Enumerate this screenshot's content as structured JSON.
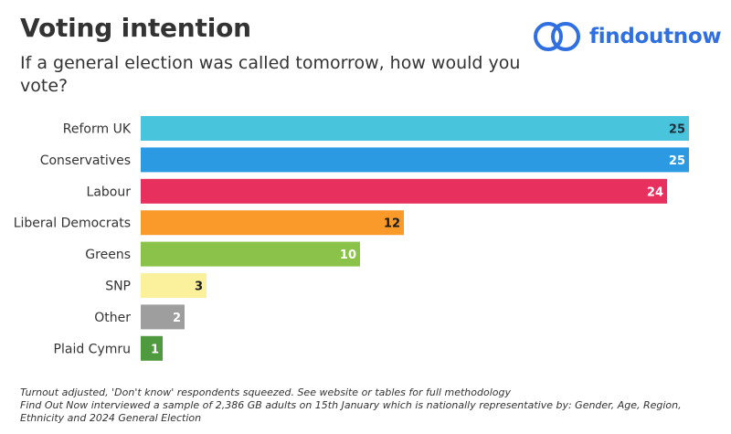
{
  "header": {
    "title": "Voting intention",
    "subtitle": "If a general election was called tomorrow, how would you vote?"
  },
  "logo": {
    "text": "findoutnow",
    "icon": "two-circles-logo-icon",
    "color": "#2f6fe0"
  },
  "footnotes": {
    "line1": "Turnout adjusted, 'Don't know' respondents squeezed. See website or tables for full methodology",
    "line2": "Find Out Now interviewed a sample of 2,386 GB adults on 15th January which is nationally representative by: Gender, Age, Region, Ethnicity and 2024 General Election"
  },
  "chart_data": {
    "type": "bar",
    "orientation": "horizontal",
    "categories": [
      "Reform UK",
      "Conservatives",
      "Labour",
      "Liberal Democrats",
      "Greens",
      "SNP",
      "Other",
      "Plaid Cymru"
    ],
    "values": [
      25,
      25,
      24,
      12,
      10,
      3,
      2,
      1
    ],
    "colors": [
      "#48c4dc",
      "#2b9ae3",
      "#e8305f",
      "#f99a2b",
      "#8bc34a",
      "#fbf09b",
      "#9e9e9e",
      "#4f9a3e"
    ],
    "label_colors": [
      "#1f2f3a",
      "#ffffff",
      "#ffffff",
      "#1a1a1a",
      "#ffffff",
      "#1a1a1a",
      "#ffffff",
      "#ffffff"
    ],
    "title": "Voting intention",
    "xlabel": "",
    "ylabel": "",
    "xlim": [
      0,
      25
    ],
    "grid": false,
    "legend": false
  }
}
